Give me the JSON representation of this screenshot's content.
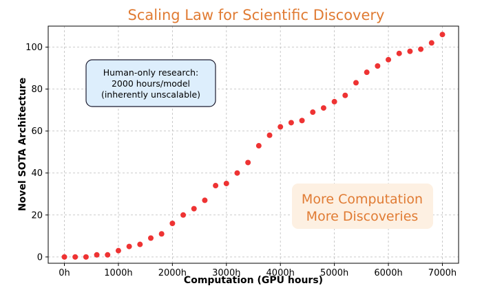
{
  "chart_data": {
    "type": "scatter",
    "title": "Scaling Law for Scientific Discovery",
    "xlabel": "Computation (GPU hours)",
    "ylabel": "Novel SOTA Architecture",
    "xlim": [
      -300,
      7300
    ],
    "ylim": [
      -3,
      110
    ],
    "grid": true,
    "point_color": "#EE3333",
    "title_color": "#E07B33",
    "x_ticks": [
      {
        "value": 0,
        "label": "0h"
      },
      {
        "value": 1000,
        "label": "1000h"
      },
      {
        "value": 2000,
        "label": "2000h"
      },
      {
        "value": 3000,
        "label": "3000h"
      },
      {
        "value": 4000,
        "label": "4000h"
      },
      {
        "value": 5000,
        "label": "5000h"
      },
      {
        "value": 6000,
        "label": "6000h"
      },
      {
        "value": 7000,
        "label": "7000h"
      }
    ],
    "y_ticks": [
      {
        "value": 0,
        "label": "0"
      },
      {
        "value": 20,
        "label": "20"
      },
      {
        "value": 40,
        "label": "40"
      },
      {
        "value": 60,
        "label": "60"
      },
      {
        "value": 80,
        "label": "80"
      },
      {
        "value": 100,
        "label": "100"
      }
    ],
    "points": [
      {
        "x": 0,
        "y": 0
      },
      {
        "x": 200,
        "y": 0
      },
      {
        "x": 400,
        "y": 0
      },
      {
        "x": 600,
        "y": 1
      },
      {
        "x": 800,
        "y": 1
      },
      {
        "x": 1000,
        "y": 3
      },
      {
        "x": 1200,
        "y": 5
      },
      {
        "x": 1400,
        "y": 6
      },
      {
        "x": 1600,
        "y": 9
      },
      {
        "x": 1800,
        "y": 11
      },
      {
        "x": 2000,
        "y": 16
      },
      {
        "x": 2200,
        "y": 20
      },
      {
        "x": 2400,
        "y": 23
      },
      {
        "x": 2600,
        "y": 27
      },
      {
        "x": 2800,
        "y": 34
      },
      {
        "x": 3000,
        "y": 35
      },
      {
        "x": 3200,
        "y": 40
      },
      {
        "x": 3400,
        "y": 45
      },
      {
        "x": 3600,
        "y": 53
      },
      {
        "x": 3800,
        "y": 58
      },
      {
        "x": 4000,
        "y": 62
      },
      {
        "x": 4200,
        "y": 64
      },
      {
        "x": 4400,
        "y": 65
      },
      {
        "x": 4600,
        "y": 69
      },
      {
        "x": 4800,
        "y": 71
      },
      {
        "x": 5000,
        "y": 74
      },
      {
        "x": 5200,
        "y": 77
      },
      {
        "x": 5400,
        "y": 83
      },
      {
        "x": 5600,
        "y": 88
      },
      {
        "x": 5800,
        "y": 91
      },
      {
        "x": 6000,
        "y": 94
      },
      {
        "x": 6200,
        "y": 97
      },
      {
        "x": 6400,
        "y": 98
      },
      {
        "x": 6600,
        "y": 99
      },
      {
        "x": 6800,
        "y": 102
      },
      {
        "x": 7000,
        "y": 106
      }
    ],
    "annotations": {
      "human_box": {
        "lines": [
          "Human-only research:",
          "2000 hours/model",
          "(inherently unscalable)"
        ],
        "fill": "#DDEEFC",
        "stroke": "#1A1A2E"
      },
      "scaling_box": {
        "lines": [
          "More Computation",
          "More Discoveries"
        ],
        "fill": "#FDF0E2",
        "text_color": "#E07B33"
      }
    }
  }
}
